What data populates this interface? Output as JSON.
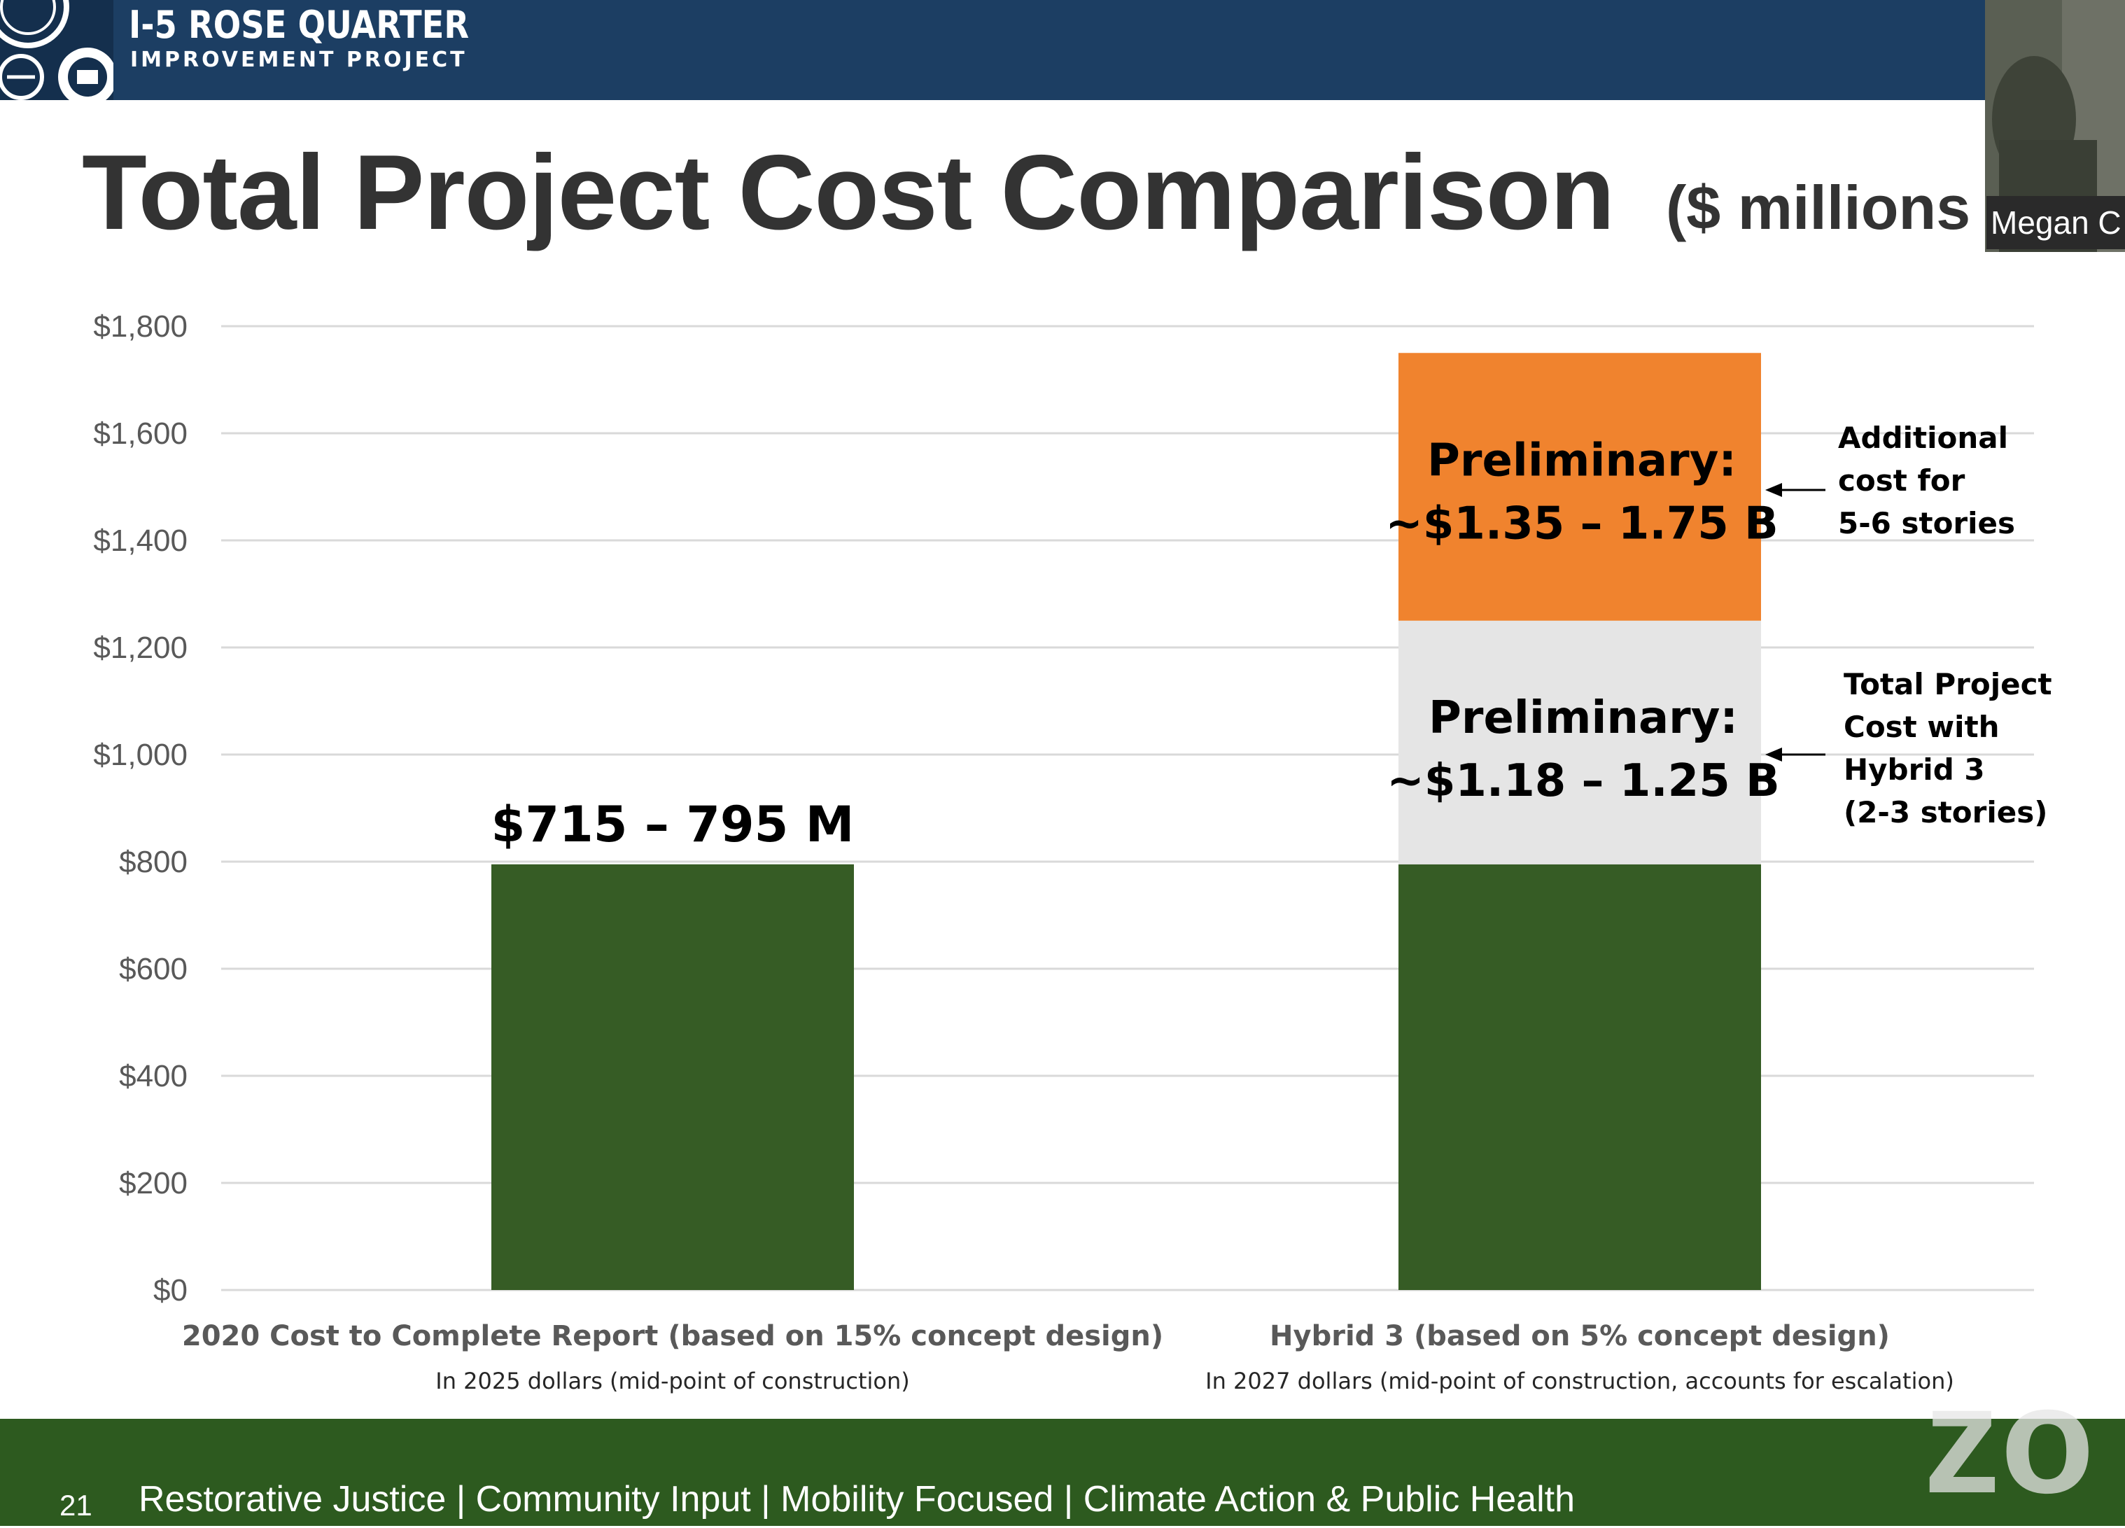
{
  "header": {
    "logo_title": "I-5 ROSE QUARTER",
    "logo_subtitle": "IMPROVEMENT PROJECT"
  },
  "slide": {
    "title": "Total Project Cost Comparison",
    "title_unit": "($ millions"
  },
  "video": {
    "participant_name": "Megan C"
  },
  "chart_data": {
    "type": "bar",
    "stacked": true,
    "y_tick_labels": [
      "$0",
      "$200",
      "$400",
      "$600",
      "$800",
      "$1,000",
      "$1,200",
      "$1,400",
      "$1,600",
      "$1,800"
    ],
    "ylim": [
      0,
      1800
    ],
    "grid": true,
    "categories": [
      "2020 Cost to Complete Report (based on 15% concept design)",
      "Hybrid 3 (based on 5% concept design)"
    ],
    "category_notes": [
      "In 2025 dollars (mid-point of construction)",
      "In 2027 dollars (mid-point of construction, accounts for escalation)"
    ],
    "series": [
      {
        "values": [
          795,
          795
        ],
        "color": "#365c25"
      },
      {
        "values": [
          0,
          455
        ],
        "color": "#e5e5e5"
      },
      {
        "values": [
          0,
          500
        ],
        "color": "#f0832e"
      }
    ],
    "bar_labels": [
      {
        "text": "$715 – 795 M"
      },
      {
        "line1": "Preliminary:",
        "line2": "~$1.18 – 1.25 B"
      },
      {
        "line1": "Preliminary:",
        "line2": "~$1.35 – 1.75 B"
      }
    ],
    "annotations": [
      {
        "lines": [
          "Additional",
          "cost for",
          "5-6 stories"
        ]
      },
      {
        "lines": [
          "Total Project",
          "Cost with",
          "Hybrid 3",
          "(2-3 stories)"
        ]
      }
    ]
  },
  "footer": {
    "page_number": "21",
    "tagline": "Restorative Justice  |  Community Input  |  Mobility Focused  |  Climate Action & Public Health"
  },
  "watermark": "zo"
}
